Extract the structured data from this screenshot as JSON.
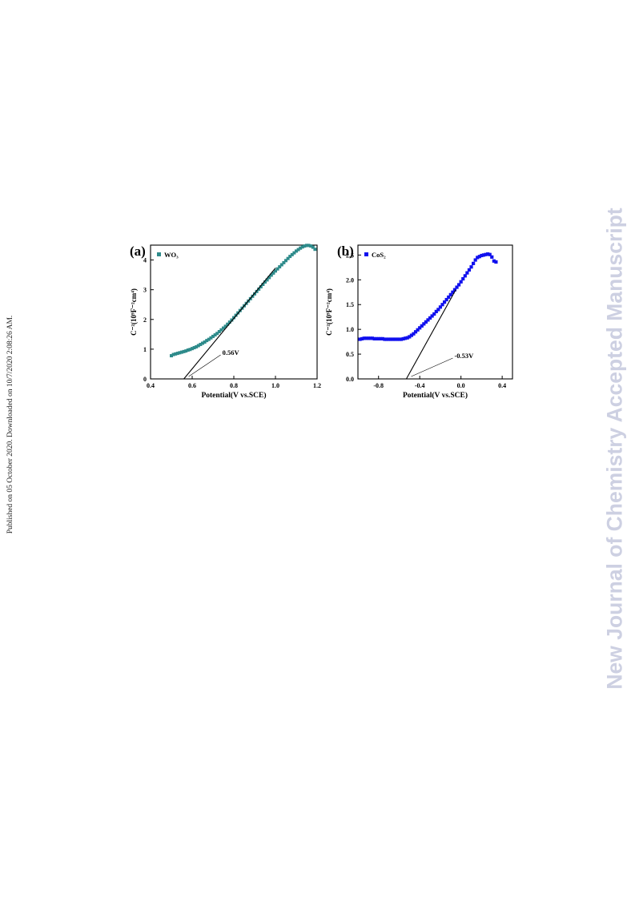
{
  "page": {
    "side_note": "Published on 05 October 2020. Downloaded on 10/7/2020 2:08:26 AM.",
    "watermark": "New Journal of Chemistry Accepted Manuscript"
  },
  "chart_data": [
    {
      "type": "scatter",
      "panel_label": "(a)",
      "title": "",
      "xlabel": "Potential(V vs.SCE)",
      "ylabel": "C⁻²(10⁹F⁻²cm⁴)",
      "xlim": [
        0.4,
        1.2
      ],
      "ylim": [
        0,
        4.5
      ],
      "xticks": [
        0.4,
        0.6,
        0.8,
        1.0,
        1.2
      ],
      "xtick_labels": [
        "0.4",
        "0.6",
        "0.8",
        "1.0",
        "1.2"
      ],
      "yticks": [
        0,
        1,
        2,
        3,
        4
      ],
      "ytick_labels": [
        "0",
        "1",
        "2",
        "3",
        "4"
      ],
      "grid": false,
      "legend_position": "top-left",
      "series": [
        {
          "name": "WO₃",
          "color": "#2e8b8b",
          "marker": "square",
          "x": [
            0.5,
            0.51,
            0.52,
            0.53,
            0.54,
            0.55,
            0.56,
            0.57,
            0.58,
            0.59,
            0.6,
            0.61,
            0.62,
            0.63,
            0.64,
            0.65,
            0.66,
            0.67,
            0.68,
            0.69,
            0.7,
            0.71,
            0.72,
            0.73,
            0.74,
            0.75,
            0.76,
            0.77,
            0.78,
            0.79,
            0.8,
            0.81,
            0.82,
            0.83,
            0.84,
            0.85,
            0.86,
            0.87,
            0.88,
            0.89,
            0.9,
            0.91,
            0.92,
            0.93,
            0.94,
            0.95,
            0.96,
            0.97,
            0.98,
            0.99,
            1.0,
            1.01,
            1.02,
            1.03,
            1.04,
            1.05,
            1.06,
            1.07,
            1.08,
            1.09,
            1.1,
            1.11,
            1.12,
            1.13,
            1.14,
            1.15,
            1.16,
            1.17,
            1.18,
            1.19
          ],
          "y": [
            0.78,
            0.82,
            0.84,
            0.86,
            0.88,
            0.9,
            0.92,
            0.94,
            0.97,
            0.99,
            1.02,
            1.05,
            1.08,
            1.12,
            1.16,
            1.2,
            1.24,
            1.29,
            1.33,
            1.38,
            1.43,
            1.48,
            1.53,
            1.59,
            1.65,
            1.71,
            1.77,
            1.84,
            1.91,
            1.98,
            2.06,
            2.14,
            2.22,
            2.3,
            2.38,
            2.46,
            2.54,
            2.62,
            2.7,
            2.78,
            2.86,
            2.94,
            3.02,
            3.1,
            3.18,
            3.26,
            3.33,
            3.41,
            3.49,
            3.56,
            3.63,
            3.7,
            3.77,
            3.84,
            3.91,
            3.98,
            4.05,
            4.12,
            4.18,
            4.24,
            4.3,
            4.35,
            4.4,
            4.44,
            4.47,
            4.49,
            4.49,
            4.47,
            4.43,
            4.36
          ]
        }
      ],
      "fit_line": {
        "x": [
          0.56,
          1.0
        ],
        "y": [
          0,
          3.73
        ]
      },
      "annotation": {
        "text": "0.56V",
        "x": 0.56,
        "y": 0
      }
    },
    {
      "type": "scatter",
      "panel_label": "(b)",
      "title": "",
      "xlabel": "Potential(V vs.SCE)",
      "ylabel": "C⁻²(10⁹F⁻²cm⁴)",
      "xlim": [
        -1.0,
        0.5
      ],
      "ylim": [
        0,
        2.7
      ],
      "xticks": [
        -0.8,
        -0.4,
        0.0,
        0.4
      ],
      "xtick_labels": [
        "-0.8",
        "-0.4",
        "0.0",
        "0.4"
      ],
      "yticks": [
        0,
        0.5,
        1.0,
        1.5,
        2.0,
        2.5
      ],
      "ytick_labels": [
        "0.0",
        "0.5",
        "1.0",
        "1.5",
        "2.0",
        "2.5"
      ],
      "grid": false,
      "legend_position": "top-left",
      "series": [
        {
          "name": "CoS₂",
          "color": "#1010ee",
          "marker": "square",
          "x": [
            -0.98,
            -0.96,
            -0.94,
            -0.92,
            -0.9,
            -0.88,
            -0.86,
            -0.84,
            -0.82,
            -0.8,
            -0.78,
            -0.76,
            -0.74,
            -0.72,
            -0.7,
            -0.68,
            -0.66,
            -0.64,
            -0.62,
            -0.6,
            -0.58,
            -0.56,
            -0.54,
            -0.52,
            -0.5,
            -0.48,
            -0.46,
            -0.44,
            -0.42,
            -0.4,
            -0.38,
            -0.36,
            -0.34,
            -0.32,
            -0.3,
            -0.28,
            -0.26,
            -0.24,
            -0.22,
            -0.2,
            -0.18,
            -0.16,
            -0.14,
            -0.12,
            -0.1,
            -0.08,
            -0.06,
            -0.04,
            -0.02,
            0.0,
            0.02,
            0.04,
            0.06,
            0.08,
            0.1,
            0.12,
            0.14,
            0.16,
            0.18,
            0.2,
            0.22,
            0.24,
            0.26,
            0.28,
            0.3,
            0.32,
            0.34
          ],
          "y": [
            0.8,
            0.81,
            0.82,
            0.82,
            0.82,
            0.82,
            0.82,
            0.81,
            0.81,
            0.81,
            0.81,
            0.81,
            0.8,
            0.8,
            0.8,
            0.8,
            0.8,
            0.8,
            0.8,
            0.8,
            0.8,
            0.81,
            0.82,
            0.83,
            0.85,
            0.88,
            0.91,
            0.95,
            0.99,
            1.03,
            1.07,
            1.11,
            1.15,
            1.19,
            1.23,
            1.27,
            1.31,
            1.36,
            1.4,
            1.45,
            1.5,
            1.55,
            1.6,
            1.65,
            1.7,
            1.75,
            1.8,
            1.85,
            1.9,
            1.96,
            2.02,
            2.08,
            2.14,
            2.2,
            2.26,
            2.33,
            2.4,
            2.45,
            2.47,
            2.49,
            2.5,
            2.51,
            2.52,
            2.51,
            2.46,
            2.38,
            2.36
          ]
        }
      ],
      "fit_line": {
        "x": [
          -0.53,
          -0.05
        ],
        "y": [
          0,
          1.8
        ]
      },
      "annotation": {
        "text": "-0.53V",
        "x": -0.53,
        "y": 0
      }
    }
  ]
}
